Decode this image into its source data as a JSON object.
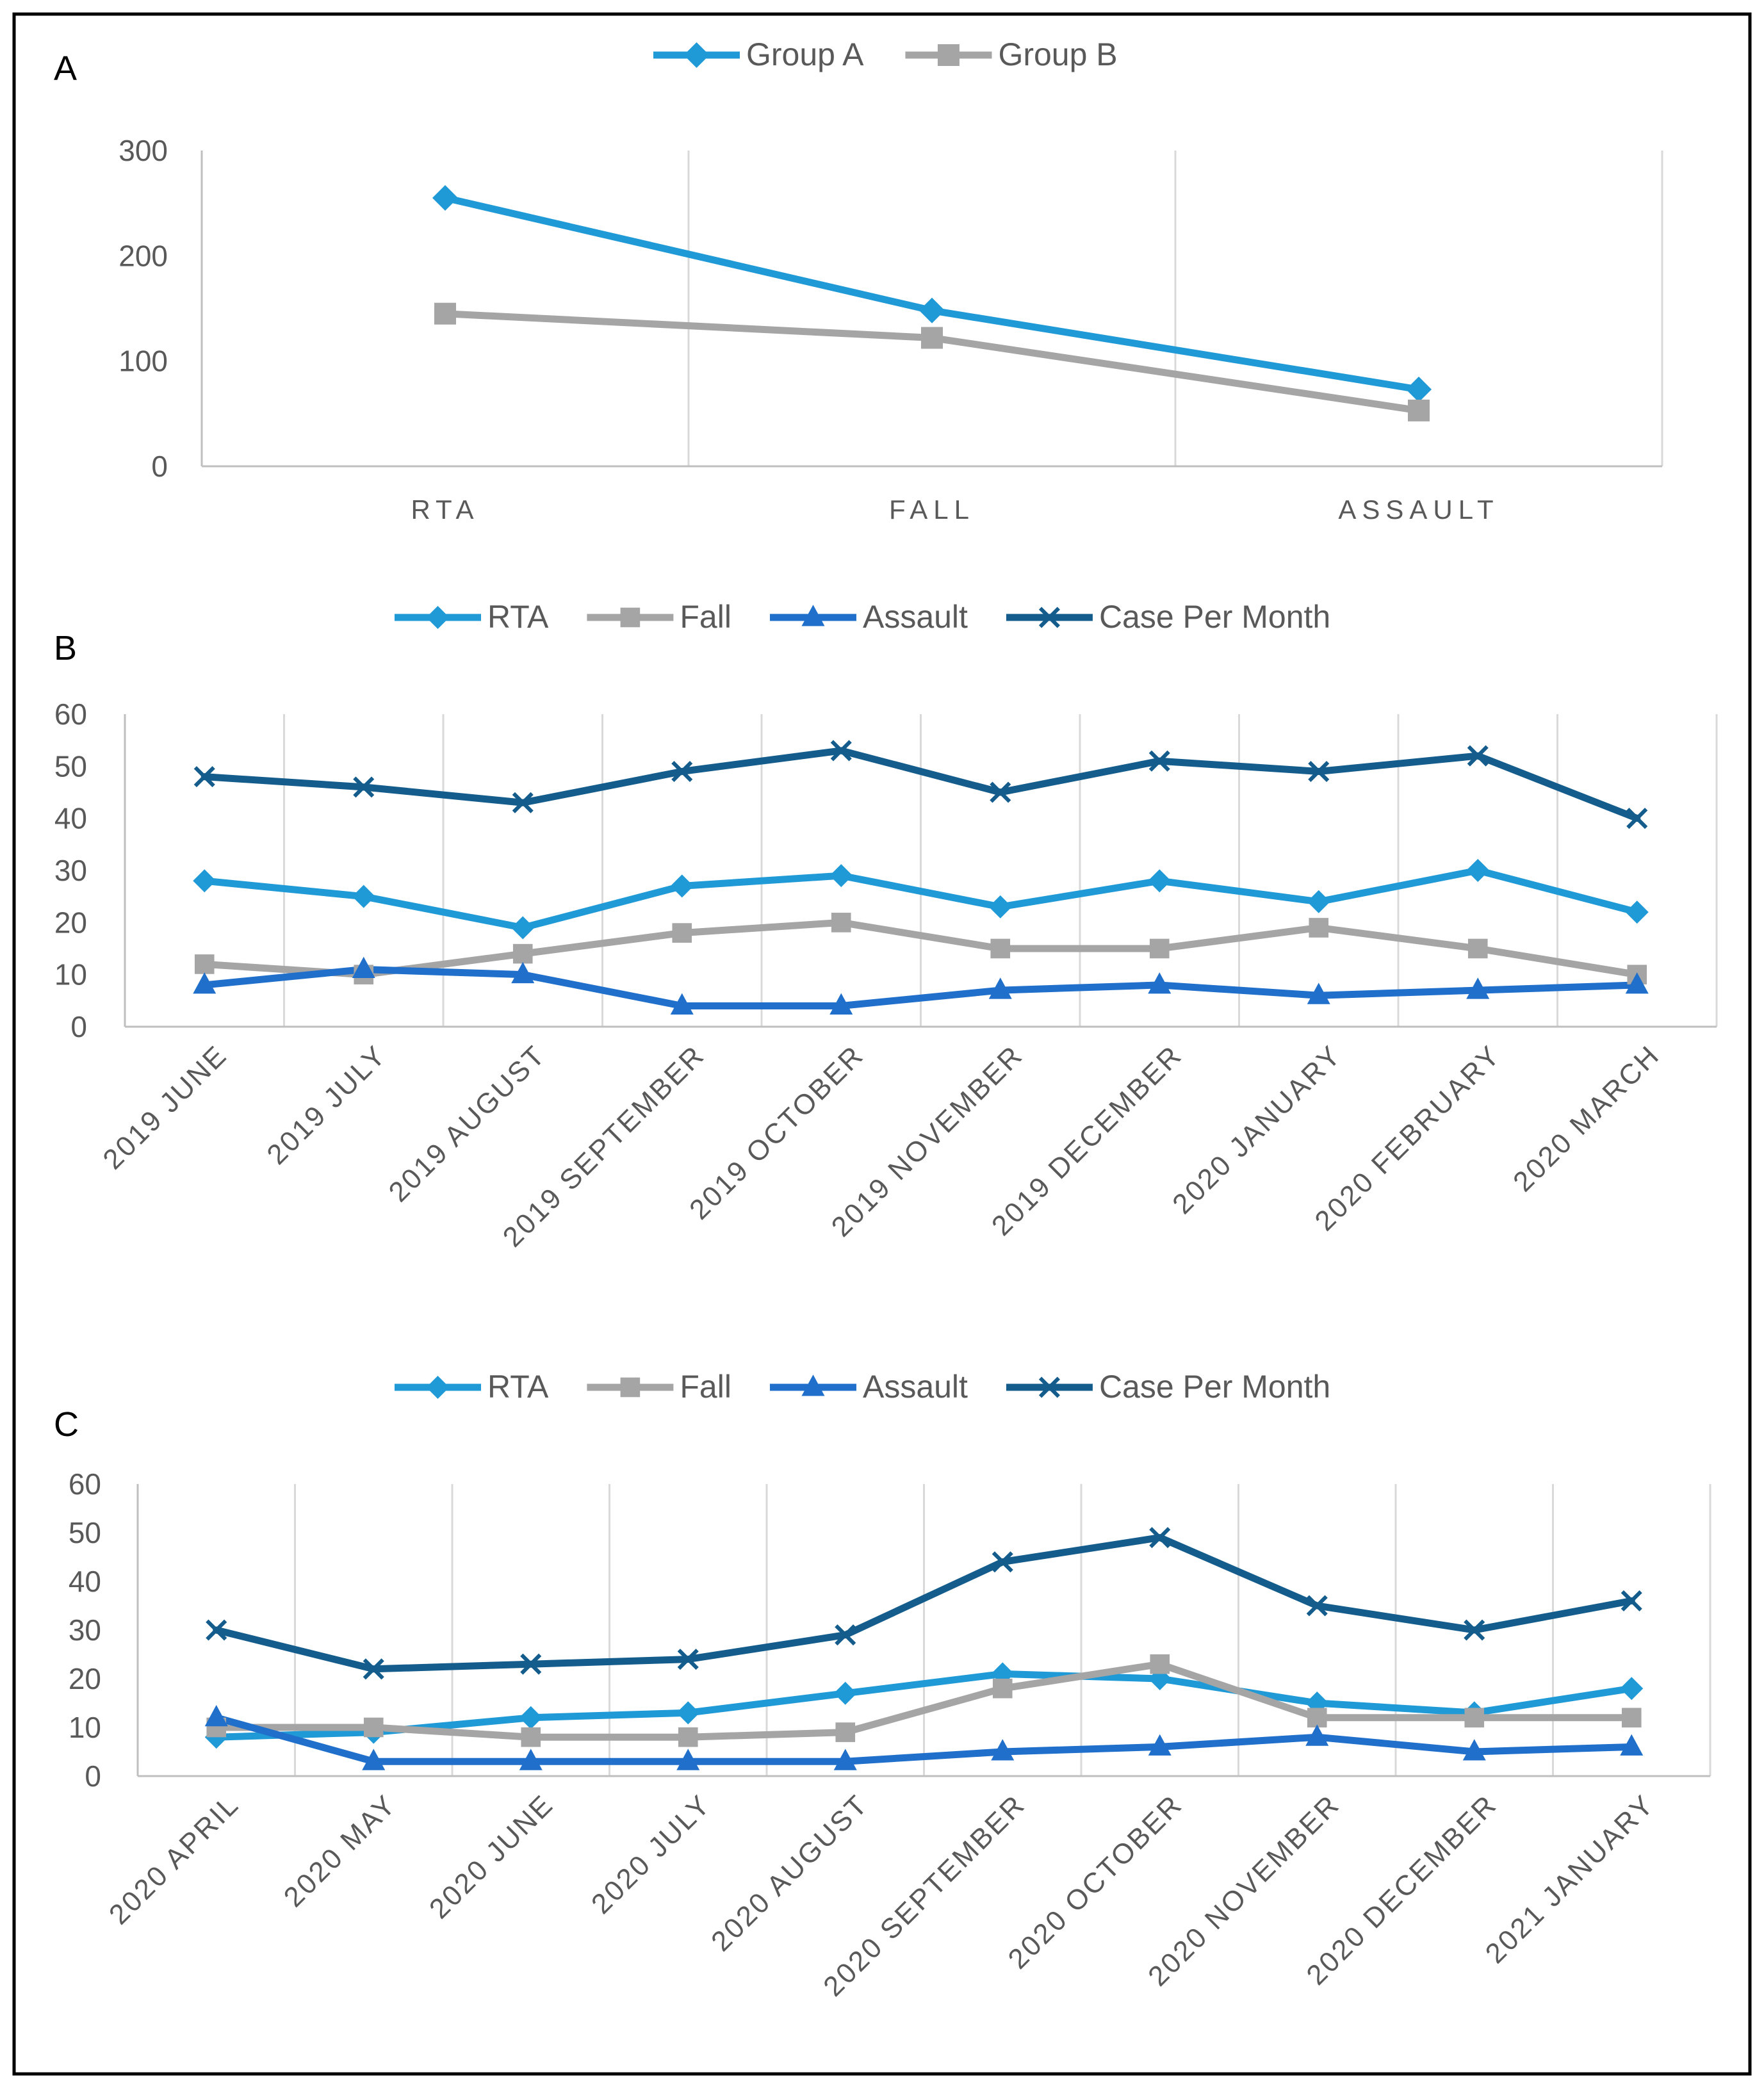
{
  "chart_data": [
    {
      "panel": "A",
      "type": "line",
      "categories": [
        "RTA",
        "FALL",
        "ASSAULT"
      ],
      "series": [
        {
          "name": "Group A",
          "marker": "diamond",
          "color": "#1F9AD6",
          "values": [
            255,
            148,
            73
          ]
        },
        {
          "name": "Group B",
          "marker": "square",
          "color": "#A5A5A5",
          "values": [
            145,
            122,
            53
          ]
        }
      ],
      "ylim": [
        0,
        300
      ],
      "yticks": [
        "0",
        "100",
        "200",
        "300"
      ],
      "grid": "vertical",
      "legend": "top-center"
    },
    {
      "panel": "B",
      "type": "line",
      "categories": [
        "2019 JUNE",
        "2019 JULY",
        "2019 AUGUST",
        "2019 SEPTEMBER",
        "2019 OCTOBER",
        "2019 NOVEMBER",
        "2019 DECEMBER",
        "2020 JANUARY",
        "2020 FEBRUARY",
        "2020 MARCH"
      ],
      "series": [
        {
          "name": "RTA",
          "marker": "diamond",
          "color": "#1F9AD6",
          "values": [
            28,
            25,
            19,
            27,
            29,
            23,
            28,
            24,
            30,
            22
          ]
        },
        {
          "name": "Fall",
          "marker": "square",
          "color": "#A5A5A5",
          "values": [
            12,
            10,
            14,
            18,
            20,
            15,
            15,
            19,
            15,
            10
          ]
        },
        {
          "name": "Assault",
          "marker": "triangle",
          "color": "#1F6FCB",
          "values": [
            8,
            11,
            10,
            4,
            4,
            7,
            8,
            6,
            7,
            8
          ]
        },
        {
          "name": "Case Per Month",
          "marker": "x",
          "color": "#145C8C",
          "values": [
            48,
            46,
            43,
            49,
            53,
            45,
            51,
            49,
            52,
            40
          ]
        }
      ],
      "ylim": [
        0,
        60
      ],
      "yticks": [
        "0",
        "10",
        "20",
        "30",
        "40",
        "50",
        "60"
      ],
      "grid": "vertical",
      "legend": "top-center"
    },
    {
      "panel": "C",
      "type": "line",
      "categories": [
        "2020 APRIL",
        "2020 MAY",
        "2020 JUNE",
        "2020 JULY",
        "2020 AUGUST",
        "2020 SEPTEMBER",
        "2020 OCTOBER",
        "2020 NOVEMBER",
        "2020 DECEMBER",
        "2021 JANUARY"
      ],
      "series": [
        {
          "name": "RTA",
          "marker": "diamond",
          "color": "#1F9AD6",
          "values": [
            8,
            9,
            12,
            13,
            17,
            21,
            20,
            15,
            13,
            18
          ]
        },
        {
          "name": "Fall",
          "marker": "square",
          "color": "#A5A5A5",
          "values": [
            10,
            10,
            8,
            8,
            9,
            18,
            23,
            12,
            12,
            12
          ]
        },
        {
          "name": "Assault",
          "marker": "triangle",
          "color": "#1F6FCB",
          "values": [
            12,
            3,
            3,
            3,
            3,
            5,
            6,
            8,
            5,
            6
          ]
        },
        {
          "name": "Case Per Month",
          "marker": "x",
          "color": "#145C8C",
          "values": [
            30,
            22,
            23,
            24,
            29,
            44,
            49,
            35,
            30,
            36
          ]
        }
      ],
      "ylim": [
        0,
        60
      ],
      "yticks": [
        "0",
        "10",
        "20",
        "30",
        "40",
        "50",
        "60"
      ],
      "grid": "vertical",
      "legend": "top-center"
    }
  ],
  "colors": {
    "axis": "#BFBFBF",
    "grid": "#D9D9D9",
    "text": "#595959",
    "border": "#000000"
  }
}
